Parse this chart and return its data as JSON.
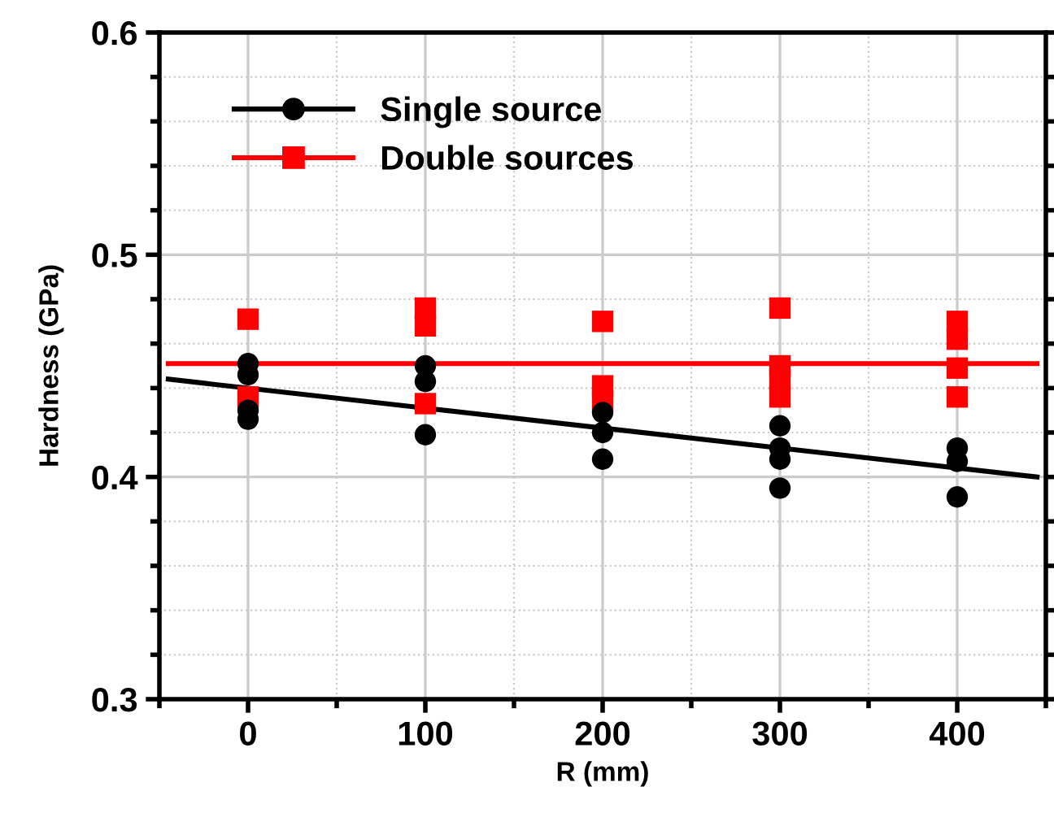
{
  "chart_data": {
    "type": "scatter",
    "xlabel": "R (mm)",
    "ylabel": "Hardness (GPa)",
    "xlim": [
      -50,
      450
    ],
    "ylim": [
      0.3,
      0.6
    ],
    "xticks": [
      {
        "value": -50,
        "label": null
      },
      0,
      {
        "value": 50,
        "label": null
      },
      100,
      {
        "value": 150,
        "label": null
      },
      200,
      {
        "value": 250,
        "label": null
      },
      300,
      {
        "value": 350,
        "label": null
      },
      400,
      {
        "value": 450,
        "label": null
      }
    ],
    "yticks": [
      0.3,
      {
        "value": 0.32,
        "label": null
      },
      {
        "value": 0.34,
        "label": null
      },
      {
        "value": 0.36,
        "label": null
      },
      {
        "value": 0.38,
        "label": null
      },
      0.4,
      {
        "value": 0.42,
        "label": null
      },
      {
        "value": 0.44,
        "label": null
      },
      {
        "value": 0.46,
        "label": null
      },
      {
        "value": 0.48,
        "label": null
      },
      0.5,
      {
        "value": 0.52,
        "label": null
      },
      {
        "value": 0.54,
        "label": null
      },
      {
        "value": 0.56,
        "label": null
      },
      {
        "value": 0.58,
        "label": null
      },
      0.6
    ],
    "grid": true,
    "legend": "top left",
    "series": [
      {
        "name": "Single source",
        "color": "#000000",
        "marker": "circle",
        "x": [
          0,
          0,
          0,
          0,
          100,
          100,
          100,
          200,
          200,
          200,
          300,
          300,
          300,
          300,
          400,
          400,
          400
        ],
        "values": [
          0.451,
          0.446,
          0.43,
          0.426,
          0.45,
          0.443,
          0.419,
          0.429,
          0.42,
          0.408,
          0.423,
          0.413,
          0.408,
          0.395,
          0.413,
          0.407,
          0.391
        ]
      },
      {
        "type": "line",
        "color": "#000000",
        "marker": "none",
        "x": [
          -45,
          445
        ],
        "values": [
          0.444,
          0.4
        ]
      },
      {
        "name": "Double sources",
        "color": "#ff0000",
        "marker": "square",
        "x": [
          0,
          0,
          100,
          100,
          100,
          200,
          200,
          200,
          300,
          300,
          300,
          300,
          400,
          400,
          400,
          400
        ],
        "values": [
          0.471,
          0.436,
          0.476,
          0.468,
          0.433,
          0.47,
          0.441,
          0.434,
          0.476,
          0.45,
          0.444,
          0.436,
          0.47,
          0.462,
          0.449,
          0.436
        ]
      },
      {
        "type": "line",
        "color": "#ff0000",
        "marker": "none",
        "x": [
          -45,
          445
        ],
        "values": [
          0.451,
          0.451
        ]
      }
    ]
  }
}
